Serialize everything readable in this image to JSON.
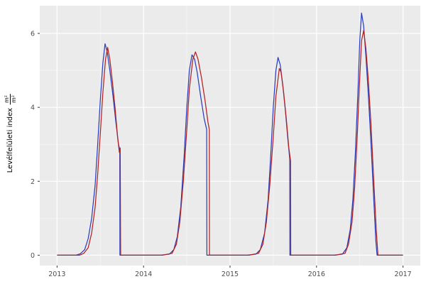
{
  "chart_data": {
    "type": "line",
    "title": "",
    "xlabel": "",
    "ylabel_text": "Levélfelületi index",
    "ylabel_frac_num": "m²",
    "ylabel_frac_den": "m²",
    "x_ticks": [
      2013,
      2014,
      2015,
      2016,
      2017
    ],
    "y_ticks": [
      0,
      2,
      4,
      6
    ],
    "x_minor": [
      2013.5,
      2014.5,
      2015.5,
      2016.5
    ],
    "y_minor": [
      1,
      3,
      5
    ],
    "x_domain": [
      2012.8,
      2017.2
    ],
    "y_domain": [
      -0.28,
      6.75
    ],
    "grid": true,
    "legend": "none",
    "colors": {
      "panel_bg": "#ebebeb",
      "grid_major": "#ffffff",
      "grid_minor": "#f6f6f6",
      "tick_text": "#4d4d4d",
      "tick_mark": "#333333"
    },
    "series": [
      {
        "name": "blue-line",
        "color": "#2b3fc0",
        "points": [
          [
            2013.0,
            0
          ],
          [
            2013.22,
            0
          ],
          [
            2013.27,
            0.04
          ],
          [
            2013.32,
            0.15
          ],
          [
            2013.36,
            0.45
          ],
          [
            2013.4,
            1.0
          ],
          [
            2013.44,
            1.9
          ],
          [
            2013.47,
            3.0
          ],
          [
            2013.5,
            4.2
          ],
          [
            2013.53,
            5.2
          ],
          [
            2013.555,
            5.72
          ],
          [
            2013.58,
            5.5
          ],
          [
            2013.61,
            5.0
          ],
          [
            2013.645,
            4.35
          ],
          [
            2013.68,
            3.6
          ],
          [
            2013.71,
            3.0
          ],
          [
            2013.725,
            2.85
          ],
          [
            2013.727,
            0
          ],
          [
            2014.2,
            0
          ],
          [
            2014.3,
            0.03
          ],
          [
            2014.35,
            0.15
          ],
          [
            2014.39,
            0.5
          ],
          [
            2014.43,
            1.3
          ],
          [
            2014.47,
            2.7
          ],
          [
            2014.5,
            4.0
          ],
          [
            2014.53,
            5.0
          ],
          [
            2014.56,
            5.42
          ],
          [
            2014.59,
            5.3
          ],
          [
            2014.62,
            4.95
          ],
          [
            2014.66,
            4.3
          ],
          [
            2014.7,
            3.7
          ],
          [
            2014.725,
            3.45
          ],
          [
            2014.73,
            3.4
          ],
          [
            2014.732,
            0
          ],
          [
            2015.2,
            0
          ],
          [
            2015.3,
            0.03
          ],
          [
            2015.35,
            0.15
          ],
          [
            2015.4,
            0.6
          ],
          [
            2015.44,
            1.5
          ],
          [
            2015.47,
            2.7
          ],
          [
            2015.5,
            4.0
          ],
          [
            2015.53,
            5.0
          ],
          [
            2015.555,
            5.35
          ],
          [
            2015.58,
            5.15
          ],
          [
            2015.61,
            4.6
          ],
          [
            2015.64,
            3.9
          ],
          [
            2015.67,
            3.1
          ],
          [
            2015.69,
            2.6
          ],
          [
            2015.692,
            0
          ],
          [
            2016.2,
            0
          ],
          [
            2016.3,
            0.03
          ],
          [
            2016.35,
            0.2
          ],
          [
            2016.39,
            0.7
          ],
          [
            2016.42,
            1.5
          ],
          [
            2016.45,
            2.8
          ],
          [
            2016.48,
            4.5
          ],
          [
            2016.5,
            5.8
          ],
          [
            2016.52,
            6.55
          ],
          [
            2016.545,
            6.2
          ],
          [
            2016.57,
            5.4
          ],
          [
            2016.6,
            4.3
          ],
          [
            2016.63,
            3.0
          ],
          [
            2016.66,
            1.6
          ],
          [
            2016.685,
            0.4
          ],
          [
            2016.7,
            0
          ],
          [
            2017.0,
            0
          ]
        ]
      },
      {
        "name": "red-line",
        "color": "#b22222",
        "points": [
          [
            2013.0,
            0
          ],
          [
            2013.26,
            0
          ],
          [
            2013.31,
            0.05
          ],
          [
            2013.36,
            0.2
          ],
          [
            2013.4,
            0.6
          ],
          [
            2013.44,
            1.3
          ],
          [
            2013.47,
            2.2
          ],
          [
            2013.5,
            3.3
          ],
          [
            2013.53,
            4.4
          ],
          [
            2013.56,
            5.3
          ],
          [
            2013.585,
            5.62
          ],
          [
            2013.61,
            5.3
          ],
          [
            2013.64,
            4.7
          ],
          [
            2013.67,
            4.0
          ],
          [
            2013.7,
            3.2
          ],
          [
            2013.72,
            2.78
          ],
          [
            2013.73,
            2.9
          ],
          [
            2013.735,
            0
          ],
          [
            2014.22,
            0
          ],
          [
            2014.33,
            0.05
          ],
          [
            2014.38,
            0.3
          ],
          [
            2014.42,
            0.9
          ],
          [
            2014.46,
            2.0
          ],
          [
            2014.5,
            3.4
          ],
          [
            2014.53,
            4.5
          ],
          [
            2014.57,
            5.3
          ],
          [
            2014.6,
            5.5
          ],
          [
            2014.63,
            5.3
          ],
          [
            2014.67,
            4.8
          ],
          [
            2014.71,
            4.2
          ],
          [
            2014.745,
            3.6
          ],
          [
            2014.76,
            3.4
          ],
          [
            2014.762,
            0
          ],
          [
            2015.22,
            0
          ],
          [
            2015.33,
            0.05
          ],
          [
            2015.38,
            0.3
          ],
          [
            2015.42,
            0.9
          ],
          [
            2015.46,
            1.9
          ],
          [
            2015.5,
            3.2
          ],
          [
            2015.53,
            4.3
          ],
          [
            2015.57,
            5.05
          ],
          [
            2015.59,
            4.95
          ],
          [
            2015.62,
            4.4
          ],
          [
            2015.65,
            3.7
          ],
          [
            2015.68,
            2.9
          ],
          [
            2015.7,
            2.55
          ],
          [
            2015.702,
            0
          ],
          [
            2016.22,
            0
          ],
          [
            2016.33,
            0.05
          ],
          [
            2016.37,
            0.3
          ],
          [
            2016.41,
            0.9
          ],
          [
            2016.44,
            1.8
          ],
          [
            2016.47,
            3.2
          ],
          [
            2016.5,
            4.8
          ],
          [
            2016.52,
            5.8
          ],
          [
            2016.545,
            6.08
          ],
          [
            2016.57,
            5.6
          ],
          [
            2016.6,
            4.7
          ],
          [
            2016.63,
            3.5
          ],
          [
            2016.66,
            2.1
          ],
          [
            2016.69,
            0.7
          ],
          [
            2016.71,
            0
          ],
          [
            2017.0,
            0
          ]
        ]
      }
    ]
  }
}
